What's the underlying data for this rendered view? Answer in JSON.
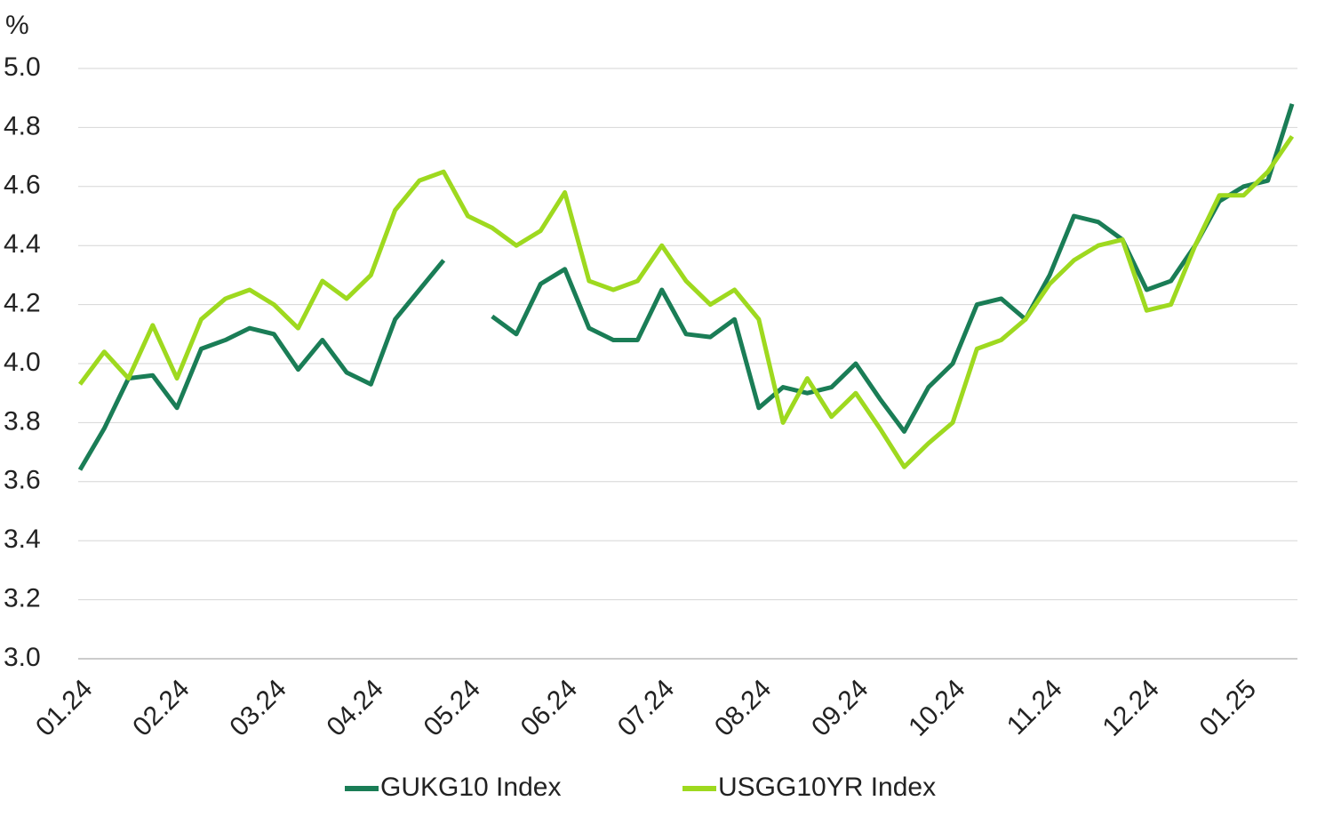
{
  "chart_data": {
    "type": "line",
    "y_label": "%",
    "categories": [
      "01.24",
      null,
      null,
      null,
      "02.24",
      null,
      null,
      null,
      "03.24",
      null,
      null,
      null,
      "04.24",
      null,
      null,
      null,
      "05.24",
      null,
      null,
      null,
      "06.24",
      null,
      null,
      null,
      "07.24",
      null,
      null,
      null,
      "08.24",
      null,
      null,
      null,
      "09.24",
      null,
      null,
      null,
      "10.24",
      null,
      null,
      null,
      "11.24",
      null,
      null,
      null,
      "12.24",
      null,
      null,
      null,
      "01.25",
      null,
      null
    ],
    "series": [
      {
        "name": "GUKG10 Index",
        "color": "#1a7d56",
        "values": [
          3.64,
          3.78,
          3.95,
          3.96,
          3.85,
          4.05,
          4.08,
          4.12,
          4.1,
          3.98,
          4.08,
          3.97,
          3.93,
          4.15,
          4.25,
          4.35,
          null,
          4.16,
          4.1,
          4.27,
          4.32,
          4.12,
          4.08,
          4.08,
          4.25,
          4.1,
          4.09,
          4.15,
          3.85,
          3.92,
          3.9,
          3.92,
          4.0,
          3.88,
          3.77,
          3.92,
          4.0,
          4.2,
          4.22,
          4.15,
          4.3,
          4.5,
          4.48,
          4.42,
          4.25,
          4.28,
          4.4,
          4.55,
          4.6,
          4.62,
          4.88
        ]
      },
      {
        "name": "USGG10YR Index",
        "color": "#9ed91f",
        "values": [
          3.93,
          4.04,
          3.95,
          4.13,
          3.95,
          4.15,
          4.22,
          4.25,
          4.2,
          4.12,
          4.28,
          4.22,
          4.3,
          4.52,
          4.62,
          4.65,
          4.5,
          4.46,
          4.4,
          4.45,
          4.58,
          4.28,
          4.25,
          4.28,
          4.4,
          4.28,
          4.2,
          4.25,
          4.15,
          3.8,
          3.95,
          3.82,
          3.9,
          3.78,
          3.65,
          3.73,
          3.8,
          4.05,
          4.08,
          4.15,
          4.27,
          4.35,
          4.4,
          4.42,
          4.18,
          4.2,
          4.4,
          4.57,
          4.57,
          4.65,
          4.77
        ]
      }
    ],
    "ylim": [
      3,
      5
    ],
    "yticks": [
      {
        "value": 3,
        "label": "3.0"
      },
      {
        "value": 3.2,
        "label": "3.2"
      },
      {
        "value": 3.4,
        "label": "3.4"
      },
      {
        "value": 3.6,
        "label": "3.6"
      },
      {
        "value": 3.8,
        "label": "3.8"
      },
      {
        "value": 4,
        "label": "4.0"
      },
      {
        "value": 4.2,
        "label": "4.2"
      },
      {
        "value": 4.4,
        "label": "4.4"
      },
      {
        "value": 4.6,
        "label": "4.6"
      },
      {
        "value": 4.8,
        "label": "4.8"
      },
      {
        "value": 5,
        "label": "5.0"
      }
    ],
    "grid": true,
    "legend": "bottom"
  }
}
